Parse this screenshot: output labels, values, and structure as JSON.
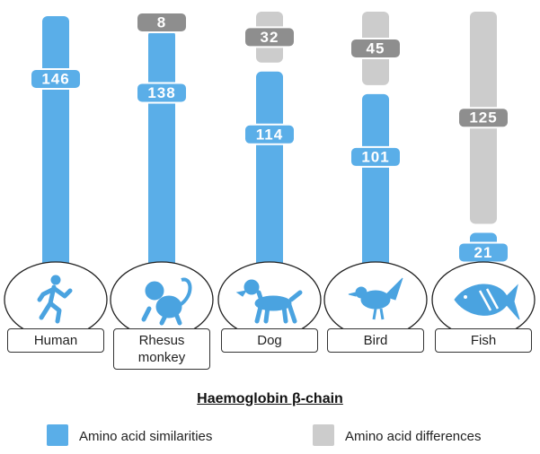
{
  "chart_data": {
    "type": "bar",
    "stacked": true,
    "title": "Haemoglobin β-chain",
    "categories": [
      "Human",
      "Rhesus monkey",
      "Dog",
      "Bird",
      "Fish"
    ],
    "series": [
      {
        "name": "Amino acid similarities",
        "color": "#5aaee8",
        "values": [
          146,
          138,
          114,
          101,
          21
        ]
      },
      {
        "name": "Amino acid differences",
        "color": "#cccccc",
        "values": [
          0,
          8,
          32,
          45,
          125
        ]
      }
    ],
    "ylim": [
      0,
      146
    ]
  }
}
